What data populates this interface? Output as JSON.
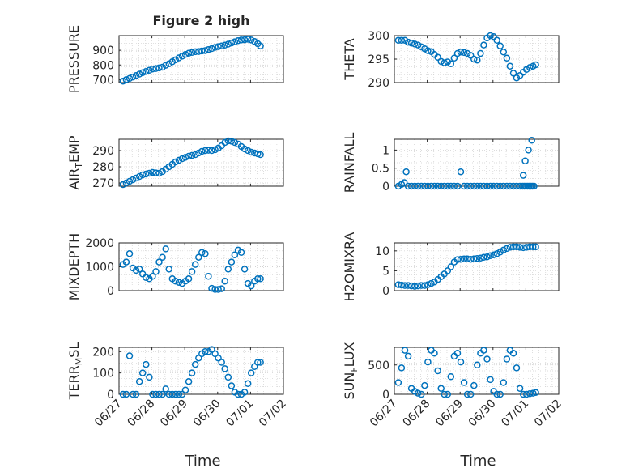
{
  "figure": {
    "title": "Figure 2 high",
    "marker_color": "#0072BD",
    "x_ticks": [
      {
        "value": 0,
        "label": "06/27"
      },
      {
        "value": 1,
        "label": "06/28"
      },
      {
        "value": 2,
        "label": "06/29"
      },
      {
        "value": 3,
        "label": "06/30"
      },
      {
        "value": 4,
        "label": "07/01"
      },
      {
        "value": 5,
        "label": "07/02"
      }
    ],
    "xlabel": "Time"
  },
  "chart_data": [
    {
      "type": "scatter",
      "title": "Figure 2 high",
      "ylabel": "PRESSURE",
      "xlim": [
        0,
        5
      ],
      "ylim": [
        680,
        1000
      ],
      "yticks": [
        700,
        800,
        900
      ],
      "grid": true,
      "x": [
        0.12,
        0.22,
        0.32,
        0.42,
        0.52,
        0.62,
        0.72,
        0.82,
        0.92,
        1.02,
        1.12,
        1.22,
        1.32,
        1.42,
        1.52,
        1.62,
        1.72,
        1.82,
        1.92,
        2.02,
        2.12,
        2.22,
        2.32,
        2.42,
        2.52,
        2.62,
        2.72,
        2.82,
        2.92,
        3.02,
        3.12,
        3.22,
        3.32,
        3.42,
        3.52,
        3.62,
        3.72,
        3.82,
        3.92,
        4.02,
        4.12,
        4.22,
        4.3
      ],
      "y": [
        690,
        700,
        708,
        718,
        728,
        738,
        748,
        756,
        764,
        772,
        776,
        780,
        785,
        798,
        808,
        822,
        835,
        848,
        860,
        872,
        880,
        885,
        890,
        892,
        895,
        898,
        905,
        912,
        920,
        925,
        930,
        935,
        942,
        950,
        958,
        965,
        970,
        972,
        975,
        970,
        960,
        945,
        930
      ]
    },
    {
      "type": "scatter",
      "ylabel": "THETA",
      "xlim": [
        0,
        5
      ],
      "ylim": [
        290,
        300
      ],
      "yticks": [
        290,
        295,
        300
      ],
      "grid": true,
      "x": [
        0.12,
        0.22,
        0.32,
        0.42,
        0.52,
        0.62,
        0.72,
        0.82,
        0.92,
        1.02,
        1.12,
        1.22,
        1.32,
        1.42,
        1.52,
        1.62,
        1.72,
        1.82,
        1.92,
        2.02,
        2.12,
        2.22,
        2.32,
        2.42,
        2.52,
        2.62,
        2.72,
        2.82,
        2.92,
        3.02,
        3.12,
        3.22,
        3.32,
        3.42,
        3.52,
        3.62,
        3.72,
        3.82,
        3.92,
        4.02,
        4.12,
        4.22,
        4.3
      ],
      "y": [
        299,
        299,
        299,
        298.6,
        298.4,
        298.2,
        298,
        297.6,
        297.2,
        296.8,
        296.6,
        296,
        295.4,
        294.5,
        294.2,
        294.4,
        294,
        295.2,
        296.2,
        296.5,
        296.4,
        296.2,
        295.8,
        295,
        294.8,
        296.2,
        298,
        299.5,
        300,
        299.8,
        299,
        297.8,
        296.5,
        295.2,
        293.5,
        292,
        291,
        291.5,
        292.2,
        292.8,
        293.2,
        293.5,
        293.8
      ]
    },
    {
      "type": "scatter",
      "ylabel": "AIR_TEMP",
      "xlim": [
        0,
        5
      ],
      "ylim": [
        268,
        297
      ],
      "yticks": [
        270,
        280,
        290
      ],
      "grid": true,
      "x": [
        0.12,
        0.22,
        0.32,
        0.42,
        0.52,
        0.62,
        0.72,
        0.82,
        0.92,
        1.02,
        1.12,
        1.22,
        1.32,
        1.42,
        1.52,
        1.62,
        1.72,
        1.82,
        1.92,
        2.02,
        2.12,
        2.22,
        2.32,
        2.42,
        2.52,
        2.62,
        2.72,
        2.82,
        2.92,
        3.02,
        3.12,
        3.22,
        3.32,
        3.42,
        3.52,
        3.62,
        3.72,
        3.82,
        3.92,
        4.02,
        4.12,
        4.22,
        4.3
      ],
      "y": [
        269,
        270,
        271,
        272,
        273,
        274,
        275,
        275.5,
        276,
        276.5,
        276.2,
        276,
        277,
        278.5,
        280,
        281.5,
        283,
        284,
        285,
        285.8,
        286.5,
        287,
        287.5,
        288.5,
        289.5,
        290,
        290.2,
        290,
        290.5,
        291.5,
        293,
        295,
        296,
        295.8,
        295,
        294,
        292.5,
        291,
        290,
        289,
        288.5,
        288,
        287.5
      ]
    },
    {
      "type": "scatter",
      "ylabel": "RAINFALL",
      "xlim": [
        0,
        5
      ],
      "ylim": [
        0,
        1.3
      ],
      "yticks": [
        0,
        0.5,
        1
      ],
      "grid": true,
      "x": [
        0.12,
        0.22,
        0.3,
        0.36,
        0.42,
        0.52,
        0.62,
        0.72,
        0.82,
        0.92,
        1.02,
        1.12,
        1.22,
        1.32,
        1.42,
        1.52,
        1.62,
        1.72,
        1.82,
        1.92,
        2.02,
        2.12,
        2.22,
        2.32,
        2.42,
        2.52,
        2.62,
        2.72,
        2.82,
        2.92,
        3.02,
        3.12,
        3.22,
        3.32,
        3.42,
        3.52,
        3.62,
        3.72,
        3.82,
        3.9,
        3.95,
        4.0,
        4.05,
        4.1,
        4.15,
        4.2,
        4.25,
        3.92,
        3.98,
        4.08,
        4.18
      ],
      "y": [
        0,
        0.05,
        0.1,
        0.4,
        0,
        0,
        0,
        0,
        0,
        0,
        0,
        0,
        0,
        0,
        0,
        0,
        0,
        0,
        0,
        0,
        0.4,
        0,
        0,
        0,
        0,
        0,
        0,
        0,
        0,
        0,
        0,
        0,
        0,
        0,
        0,
        0,
        0,
        0,
        0,
        0,
        0,
        0,
        0,
        0,
        0,
        0,
        0,
        0.3,
        0.7,
        1.0,
        1.27
      ]
    },
    {
      "type": "scatter",
      "ylabel": "MIXDEPTH",
      "xlim": [
        0,
        5
      ],
      "ylim": [
        0,
        2000
      ],
      "yticks": [
        0,
        1000,
        2000
      ],
      "grid": true,
      "x": [
        0.12,
        0.22,
        0.32,
        0.42,
        0.52,
        0.62,
        0.72,
        0.82,
        0.92,
        1.02,
        1.12,
        1.22,
        1.32,
        1.42,
        1.52,
        1.62,
        1.72,
        1.82,
        1.92,
        2.02,
        2.12,
        2.22,
        2.32,
        2.42,
        2.52,
        2.62,
        2.72,
        2.82,
        2.92,
        3.02,
        3.12,
        3.22,
        3.32,
        3.42,
        3.52,
        3.62,
        3.72,
        3.82,
        3.92,
        4.02,
        4.12,
        4.22,
        4.3
      ],
      "y": [
        1100,
        1200,
        1550,
        950,
        850,
        900,
        700,
        550,
        500,
        600,
        800,
        1200,
        1400,
        1750,
        900,
        500,
        400,
        350,
        300,
        400,
        500,
        800,
        1100,
        1400,
        1600,
        1550,
        600,
        100,
        50,
        50,
        80,
        400,
        900,
        1200,
        1500,
        1700,
        1600,
        900,
        300,
        200,
        400,
        500,
        500
      ]
    },
    {
      "type": "scatter",
      "ylabel": "H2OMIXRA",
      "xlim": [
        0,
        5
      ],
      "ylim": [
        0,
        12
      ],
      "yticks": [
        0,
        5,
        10
      ],
      "grid": true,
      "x": [
        0.12,
        0.22,
        0.32,
        0.42,
        0.52,
        0.62,
        0.72,
        0.82,
        0.92,
        1.02,
        1.12,
        1.22,
        1.32,
        1.42,
        1.52,
        1.62,
        1.72,
        1.82,
        1.92,
        2.02,
        2.12,
        2.22,
        2.32,
        2.42,
        2.52,
        2.62,
        2.72,
        2.82,
        2.92,
        3.02,
        3.12,
        3.22,
        3.32,
        3.42,
        3.52,
        3.62,
        3.72,
        3.82,
        3.92,
        4.02,
        4.12,
        4.22,
        4.3
      ],
      "y": [
        1.5,
        1.4,
        1.3,
        1.3,
        1.2,
        1.1,
        1.2,
        1.3,
        1.3,
        1.5,
        1.8,
        2.2,
        2.8,
        3.5,
        4.2,
        5.0,
        6.0,
        7.2,
        7.8,
        7.9,
        8.0,
        8.0,
        7.9,
        8.0,
        8.1,
        8.2,
        8.4,
        8.5,
        8.8,
        9.0,
        9.3,
        9.7,
        10.2,
        10.6,
        10.9,
        11.0,
        11.0,
        10.9,
        10.8,
        10.9,
        11.0,
        11.0,
        11.0
      ]
    },
    {
      "type": "scatter",
      "ylabel": "TERR_MSL",
      "xlim": [
        0,
        5
      ],
      "ylim": [
        0,
        220
      ],
      "yticks": [
        0,
        100,
        200
      ],
      "grid": true,
      "x": [
        0.12,
        0.22,
        0.32,
        0.42,
        0.52,
        0.62,
        0.72,
        0.82,
        0.92,
        1.02,
        1.12,
        1.22,
        1.32,
        1.42,
        1.52,
        1.62,
        1.72,
        1.82,
        1.92,
        2.02,
        2.12,
        2.22,
        2.32,
        2.42,
        2.52,
        2.62,
        2.72,
        2.82,
        2.92,
        3.02,
        3.12,
        3.22,
        3.32,
        3.42,
        3.52,
        3.62,
        3.72,
        3.82,
        3.92,
        4.02,
        4.12,
        4.22,
        4.3
      ],
      "y": [
        0,
        0,
        180,
        0,
        0,
        60,
        100,
        140,
        80,
        0,
        0,
        0,
        0,
        25,
        0,
        0,
        0,
        0,
        0,
        20,
        60,
        100,
        140,
        170,
        190,
        200,
        200,
        210,
        190,
        170,
        150,
        120,
        80,
        40,
        10,
        0,
        0,
        10,
        50,
        100,
        130,
        150,
        150
      ]
    },
    {
      "type": "scatter",
      "ylabel": "SUN_FLUX",
      "xlim": [
        0,
        5
      ],
      "ylim": [
        0,
        800
      ],
      "yticks": [
        0,
        500
      ],
      "grid": true,
      "x": [
        0.12,
        0.22,
        0.32,
        0.42,
        0.52,
        0.62,
        0.72,
        0.82,
        0.92,
        1.02,
        1.12,
        1.22,
        1.32,
        1.42,
        1.52,
        1.62,
        1.72,
        1.82,
        1.92,
        2.02,
        2.12,
        2.22,
        2.32,
        2.42,
        2.52,
        2.62,
        2.72,
        2.82,
        2.92,
        3.02,
        3.12,
        3.22,
        3.32,
        3.42,
        3.52,
        3.62,
        3.72,
        3.82,
        3.92,
        4.02,
        4.12,
        4.22,
        4.3
      ],
      "y": [
        200,
        450,
        750,
        650,
        100,
        50,
        20,
        0,
        150,
        550,
        750,
        700,
        400,
        100,
        0,
        0,
        300,
        650,
        700,
        550,
        200,
        0,
        0,
        150,
        500,
        700,
        750,
        600,
        250,
        50,
        0,
        0,
        200,
        600,
        750,
        700,
        450,
        100,
        0,
        0,
        10,
        20,
        30
      ]
    }
  ]
}
